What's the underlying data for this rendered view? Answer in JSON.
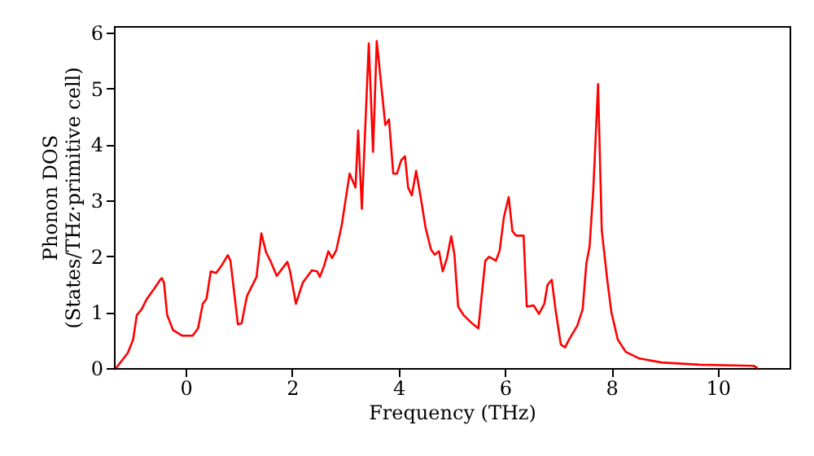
{
  "chart_data": {
    "type": "line",
    "xlabel": "Frequency (THz)",
    "ylabel": "Phonon DOS\n(States/THz·primitive cell)",
    "xlim": [
      -1.35,
      11.35
    ],
    "ylim": [
      0,
      6.12
    ],
    "xticks": [
      0,
      2,
      4,
      6,
      8,
      10
    ],
    "yticks": [
      0,
      1,
      2,
      3,
      4,
      5,
      6
    ],
    "grid": false,
    "marker": "none",
    "line_style": "solid",
    "series": [
      {
        "color": "#ff0000",
        "x": [
          -1.31,
          -1.09,
          -0.99,
          -0.92,
          -0.83,
          -0.73,
          -0.58,
          -0.48,
          -0.45,
          -0.41,
          -0.35,
          -0.24,
          -0.07,
          0.13,
          0.23,
          0.32,
          0.39,
          0.47,
          0.57,
          0.67,
          0.79,
          0.84,
          0.98,
          1.05,
          1.15,
          1.23,
          1.33,
          1.42,
          1.51,
          1.59,
          1.71,
          1.91,
          1.96,
          2.07,
          2.2,
          2.37,
          2.47,
          2.52,
          2.6,
          2.68,
          2.75,
          2.83,
          2.93,
          3.08,
          3.19,
          3.24,
          3.31,
          3.44,
          3.52,
          3.59,
          3.66,
          3.75,
          3.82,
          3.9,
          3.97,
          4.05,
          4.12,
          4.18,
          4.25,
          4.33,
          4.41,
          4.51,
          4.61,
          4.68,
          4.76,
          4.83,
          4.91,
          4.99,
          5.05,
          5.12,
          5.22,
          5.37,
          5.5,
          5.63,
          5.7,
          5.83,
          5.9,
          5.98,
          6.07,
          6.14,
          6.21,
          6.35,
          6.41,
          6.54,
          6.64,
          6.74,
          6.8,
          6.88,
          6.95,
          7.05,
          7.13,
          7.21,
          7.36,
          7.46,
          7.53,
          7.59,
          7.66,
          7.75,
          7.82,
          7.92,
          8.0,
          8.12,
          8.27,
          8.53,
          8.94,
          9.65,
          10.67,
          10.75
        ],
        "values": [
          0,
          0.27,
          0.51,
          0.95,
          1.05,
          1.24,
          1.44,
          1.58,
          1.61,
          1.53,
          0.95,
          0.68,
          0.58,
          0.58,
          0.71,
          1.15,
          1.24,
          1.73,
          1.7,
          1.83,
          2.02,
          1.92,
          0.78,
          0.8,
          1.29,
          1.44,
          1.63,
          2.41,
          2.07,
          1.92,
          1.65,
          1.9,
          1.73,
          1.15,
          1.53,
          1.75,
          1.73,
          1.63,
          1.83,
          2.09,
          1.97,
          2.11,
          2.55,
          3.48,
          3.23,
          4.25,
          2.85,
          5.81,
          3.87,
          5.85,
          5.2,
          4.35,
          4.45,
          3.48,
          3.48,
          3.72,
          3.79,
          3.23,
          3.09,
          3.53,
          3.09,
          2.5,
          2.12,
          2.03,
          2.09,
          1.73,
          1.97,
          2.36,
          2.03,
          1.1,
          0.95,
          0.81,
          0.71,
          1.92,
          1.99,
          1.92,
          2.1,
          2.7,
          3.06,
          2.45,
          2.37,
          2.37,
          1.1,
          1.12,
          0.97,
          1.15,
          1.49,
          1.58,
          1.05,
          0.42,
          0.37,
          0.52,
          0.76,
          1.05,
          1.87,
          2.17,
          3.18,
          5.08,
          2.46,
          1.6,
          1.0,
          0.51,
          0.29,
          0.17,
          0.1,
          0.06,
          0.04,
          0
        ]
      }
    ]
  }
}
